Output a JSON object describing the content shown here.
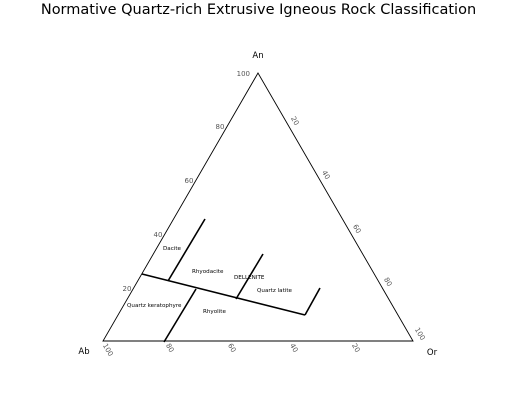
{
  "title": "Normative Quartz-rich Extrusive Igneous Rock Classification",
  "vertices": {
    "top": "An",
    "left": "Ab",
    "right": "Or"
  },
  "ticks": {
    "left_edge": [
      "100",
      "80",
      "60",
      "40",
      "20"
    ],
    "right_edge": [
      "20",
      "40",
      "60",
      "80",
      "100"
    ],
    "bottom_edge": [
      "100",
      "80",
      "60",
      "40",
      "20"
    ]
  },
  "fields": {
    "dacite": "Dacite",
    "rhyodacite": "Rhyodacite",
    "dellenite": "DELLENITE",
    "quartz_latite": "Quartz latite",
    "quartz_keratophyre": "Quartz keratophyre",
    "rhyolite": "Rhyolite"
  },
  "colors": {
    "frame": "#000000",
    "tick_text": "#555555",
    "background": "#ffffff"
  }
}
